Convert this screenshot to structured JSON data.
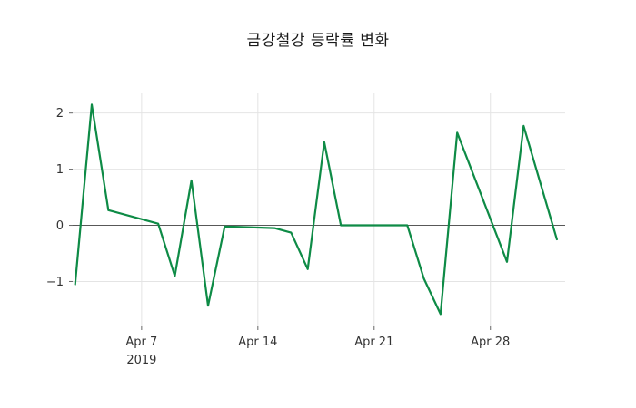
{
  "chart_data": {
    "type": "line",
    "title": "금강철강 등락률 변화",
    "xlabel": "",
    "ylabel": "",
    "legend": "none",
    "grid": "on",
    "background": "#ffffff",
    "grid_color": "#e4e4e4",
    "zero_line": true,
    "zero_line_color": "#454545",
    "xlim": [
      2.85,
      32.5
    ],
    "ylim": [
      -1.8,
      2.35
    ],
    "x_axis_unit": "date (April 2019, day-of-month index; 32 = May 2)",
    "xticks": [
      {
        "pos": 7,
        "label": "Apr 7",
        "sublabel": "2019"
      },
      {
        "pos": 14,
        "label": "Apr 14"
      },
      {
        "pos": 21,
        "label": "Apr 21"
      },
      {
        "pos": 28,
        "label": "Apr 28"
      }
    ],
    "yticks": [
      {
        "pos": -1,
        "label": "−1"
      },
      {
        "pos": 0,
        "label": "0"
      },
      {
        "pos": 1,
        "label": "1"
      },
      {
        "pos": 2,
        "label": "2"
      }
    ],
    "series": [
      {
        "name": "등락률",
        "color": "#0e8b46",
        "dates": [
          "Apr 3",
          "Apr 4",
          "Apr 5",
          "Apr 8",
          "Apr 9",
          "Apr 10",
          "Apr 11",
          "Apr 12",
          "Apr 15",
          "Apr 16",
          "Apr 17",
          "Apr 18",
          "Apr 19",
          "Apr 22",
          "Apr 23",
          "Apr 24",
          "Apr 25",
          "Apr 26",
          "Apr 29",
          "Apr 30",
          "May 2"
        ],
        "x": [
          3,
          4,
          5,
          8,
          9,
          10,
          11,
          12,
          15,
          16,
          17,
          18,
          19,
          22,
          23,
          24,
          25,
          26,
          29,
          30,
          32
        ],
        "y": [
          -1.05,
          2.15,
          0.27,
          0.03,
          -0.9,
          0.8,
          -1.43,
          -0.02,
          -0.05,
          -0.13,
          -0.78,
          1.48,
          0.0,
          0.0,
          0.0,
          -0.95,
          -1.58,
          1.65,
          -0.65,
          1.77,
          -0.25
        ]
      }
    ]
  }
}
